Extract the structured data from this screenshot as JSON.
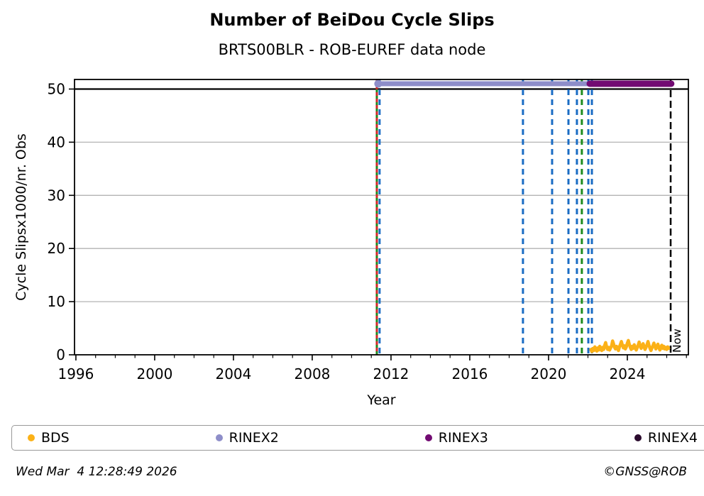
{
  "header": {
    "title": "Number of BeiDou Cycle Slips",
    "subtitle": "BRTS00BLR - ROB-EUREF data node"
  },
  "footer": {
    "timestamp": "Wed Mar  4 12:28:49 2026",
    "copyright": "©GNSS@ROB"
  },
  "legend": {
    "items": [
      {
        "label": "BDS",
        "color": "#FBB117"
      },
      {
        "label": "RINEX2",
        "color": "#8E8EC9"
      },
      {
        "label": "RINEX3",
        "color": "#720B72"
      },
      {
        "label": "RINEX4",
        "color": "#2B0B2E"
      }
    ]
  },
  "colors": {
    "grid": "#b3b3b3",
    "spine": "#000000",
    "threshold": "#000000",
    "event_blue": "#1A6CC4",
    "event_green": "#1F8B1F",
    "event_red": "#D62728",
    "now_black": "#000000"
  },
  "chart_data": {
    "type": "line",
    "title": "Number of BeiDou Cycle Slips",
    "subtitle": "BRTS00BLR - ROB-EUREF data node",
    "xlabel": "Year",
    "ylabel": "Cycle Slipsx1000/nr. Obs",
    "xlim": [
      1995.93,
      2027.1
    ],
    "ylim": [
      0,
      51.8
    ],
    "xticks_major": [
      1996,
      2000,
      2004,
      2008,
      2012,
      2016,
      2020,
      2024
    ],
    "xticks_minor_range": [
      1997,
      2027
    ],
    "yticks": [
      0,
      10,
      20,
      30,
      40,
      50
    ],
    "grid_y": [
      10,
      20,
      30,
      40
    ],
    "grid_on": true,
    "legend_position": "bottom",
    "threshold_line": {
      "y": 50
    },
    "series": [
      {
        "name": "RINEX2",
        "type": "segment",
        "color": "#8E8EC9",
        "y": 51,
        "x_start": 2011.35,
        "x_end": 2022.27,
        "width": 7,
        "start_dot": true
      },
      {
        "name": "RINEX3",
        "type": "segment",
        "color": "#720B72",
        "y": 51,
        "x_start": 2022.09,
        "x_end": 2026.23,
        "width": 9,
        "start_dot": false
      },
      {
        "name": "RINEX4",
        "type": "segment",
        "color": "#2B0B2E",
        "y": null,
        "x_start": null,
        "x_end": null,
        "width": 9,
        "start_dot": false
      },
      {
        "name": "BDS",
        "type": "noisy-line",
        "color": "#FBB117",
        "width": 4.5,
        "x_start": 2022.15,
        "x_step": 0.05,
        "values": [
          1.0,
          0.6,
          1.2,
          0.8,
          1.5,
          1.1,
          0.7,
          1.3,
          0.9,
          1.6,
          1.2,
          0.8,
          1.4,
          1.0,
          1.8,
          2.3,
          1.5,
          1.0,
          1.4,
          0.9,
          1.3,
          1.7,
          2.6,
          2.1,
          1.4,
          1.1,
          1.6,
          1.2,
          0.8,
          1.5,
          2.0,
          2.5,
          1.8,
          1.3,
          1.7,
          1.1,
          1.5,
          2.2,
          2.7,
          2.0,
          1.4,
          1.0,
          1.6,
          1.2,
          1.9,
          1.4,
          0.9,
          1.3,
          1.8,
          2.4,
          1.7,
          1.2,
          1.6,
          2.1,
          1.5,
          1.0,
          1.4,
          1.9,
          2.5,
          1.8,
          1.2,
          0.8,
          1.3,
          1.7,
          2.2,
          1.6,
          1.1,
          1.5,
          2.0,
          1.4,
          0.9,
          1.3,
          1.8,
          1.2,
          1.6,
          1.1,
          1.4,
          1.0,
          1.5,
          1.2
        ]
      }
    ],
    "event_lines": [
      {
        "year": 2011.28,
        "color_key": "event_green",
        "style": "solid"
      },
      {
        "year": 2011.28,
        "color_key": "event_red",
        "style": "dashed"
      },
      {
        "year": 2011.42,
        "color_key": "event_blue",
        "style": "dashed"
      },
      {
        "year": 2018.7,
        "color_key": "event_blue",
        "style": "dashed"
      },
      {
        "year": 2020.18,
        "color_key": "event_blue",
        "style": "dashed"
      },
      {
        "year": 2021.01,
        "color_key": "event_blue",
        "style": "dashed"
      },
      {
        "year": 2021.44,
        "color_key": "event_blue",
        "style": "dashed"
      },
      {
        "year": 2021.69,
        "color_key": "event_green",
        "style": "dashed"
      },
      {
        "year": 2022.02,
        "color_key": "event_blue",
        "style": "dashed"
      },
      {
        "year": 2022.2,
        "color_key": "event_blue",
        "style": "dashed"
      }
    ],
    "now_line": {
      "year": 2026.2,
      "label": "Now"
    }
  }
}
